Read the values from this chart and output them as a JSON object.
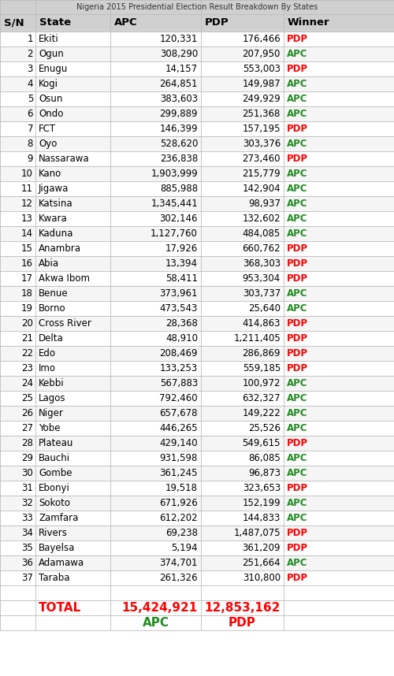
{
  "title": "Nigeria 2015 Presidential Election Result Breakdown By States",
  "headers": [
    "S/N",
    "State",
    "APC",
    "PDP",
    "Winner"
  ],
  "rows": [
    [
      1,
      "Ekiti",
      "120,331",
      "176,466",
      "PDP"
    ],
    [
      2,
      "Ogun",
      "308,290",
      "207,950",
      "APC"
    ],
    [
      3,
      "Enugu",
      "14,157",
      "553,003",
      "PDP"
    ],
    [
      4,
      "Kogi",
      "264,851",
      "149,987",
      "APC"
    ],
    [
      5,
      "Osun",
      "383,603",
      "249,929",
      "APC"
    ],
    [
      6,
      "Ondo",
      "299,889",
      "251,368",
      "APC"
    ],
    [
      7,
      "FCT",
      "146,399",
      "157,195",
      "PDP"
    ],
    [
      8,
      "Oyo",
      "528,620",
      "303,376",
      "APC"
    ],
    [
      9,
      "Nassarawa",
      "236,838",
      "273,460",
      "PDP"
    ],
    [
      10,
      "Kano",
      "1,903,999",
      "215,779",
      "APC"
    ],
    [
      11,
      "Jigawa",
      "885,988",
      "142,904",
      "APC"
    ],
    [
      12,
      "Katsina",
      "1,345,441",
      "98,937",
      "APC"
    ],
    [
      13,
      "Kwara",
      "302,146",
      "132,602",
      "APC"
    ],
    [
      14,
      "Kaduna",
      "1,127,760",
      "484,085",
      "APC"
    ],
    [
      15,
      "Anambra",
      "17,926",
      "660,762",
      "PDP"
    ],
    [
      16,
      "Abia",
      "13,394",
      "368,303",
      "PDP"
    ],
    [
      17,
      "Akwa Ibom",
      "58,411",
      "953,304",
      "PDP"
    ],
    [
      18,
      "Benue",
      "373,961",
      "303,737",
      "APC"
    ],
    [
      19,
      "Borno",
      "473,543",
      "25,640",
      "APC"
    ],
    [
      20,
      "Cross River",
      "28,368",
      "414,863",
      "PDP"
    ],
    [
      21,
      "Delta",
      "48,910",
      "1,211,405",
      "PDP"
    ],
    [
      22,
      "Edo",
      "208,469",
      "286,869",
      "PDP"
    ],
    [
      23,
      "Imo",
      "133,253",
      "559,185",
      "PDP"
    ],
    [
      24,
      "Kebbi",
      "567,883",
      "100,972",
      "APC"
    ],
    [
      25,
      "Lagos",
      "792,460",
      "632,327",
      "APC"
    ],
    [
      26,
      "Niger",
      "657,678",
      "149,222",
      "APC"
    ],
    [
      27,
      "Yobe",
      "446,265",
      "25,526",
      "APC"
    ],
    [
      28,
      "Plateau",
      "429,140",
      "549,615",
      "PDP"
    ],
    [
      29,
      "Bauchi",
      "931,598",
      "86,085",
      "APC"
    ],
    [
      30,
      "Gombe",
      "361,245",
      "96,873",
      "APC"
    ],
    [
      31,
      "Ebonyi",
      "19,518",
      "323,653",
      "PDP"
    ],
    [
      32,
      "Sokoto",
      "671,926",
      "152,199",
      "APC"
    ],
    [
      33,
      "Zamfara",
      "612,202",
      "144,833",
      "APC"
    ],
    [
      34,
      "Rivers",
      "69,238",
      "1,487,075",
      "PDP"
    ],
    [
      35,
      "Bayelsa",
      "5,194",
      "361,209",
      "PDP"
    ],
    [
      36,
      "Adamawa",
      "374,701",
      "251,664",
      "APC"
    ],
    [
      37,
      "Taraba",
      "261,326",
      "310,800",
      "PDP"
    ]
  ],
  "total_apc": "15,424,921",
  "total_pdp": "12,853,162",
  "header_bg": "#d0d0d0",
  "row_bg_even": "#ffffff",
  "row_bg_odd": "#f5f5f5",
  "apc_color": "#228B22",
  "pdp_color": "#FF0000",
  "border_color": "#bbbbbb",
  "text_color": "#000000",
  "header_font_size": 9.5,
  "row_font_size": 8.5,
  "total_font_size": 11
}
